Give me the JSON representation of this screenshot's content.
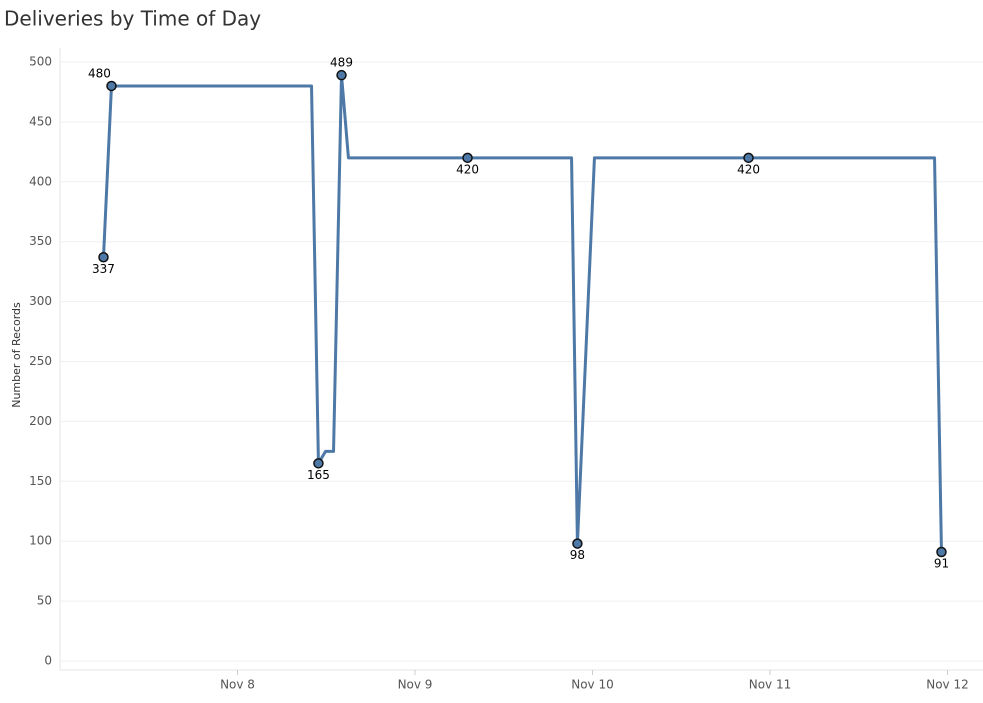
{
  "chart_data": {
    "type": "line",
    "title": "Deliveries by Time of Day",
    "y_label": "Number of Records",
    "x": [
      7.245,
      7.29,
      8.417,
      8.456,
      8.496,
      8.541,
      8.586,
      8.625,
      9.296,
      9.882,
      9.915,
      10.011,
      10.879,
      11.927,
      11.966
    ],
    "series": [
      {
        "color": "#4e79a7",
        "values": [
          337,
          480,
          480,
          165,
          175,
          175,
          489,
          420,
          420,
          420,
          98,
          420,
          420,
          420,
          91
        ],
        "value_labels": [
          "337",
          "480",
          null,
          "165",
          null,
          null,
          "489",
          null,
          "420",
          null,
          "98",
          null,
          "420",
          null,
          "91"
        ]
      }
    ],
    "xlim": [
      7.0,
      12.2
    ],
    "xticks": [
      {
        "value": 8,
        "label": "Nov 8"
      },
      {
        "value": 9,
        "label": "Nov 9"
      },
      {
        "value": 10,
        "label": "Nov 10"
      },
      {
        "value": 11,
        "label": "Nov 11"
      },
      {
        "value": 12,
        "label": "Nov 12"
      }
    ],
    "ylim": [
      0,
      500
    ],
    "yticks": [
      0,
      50,
      100,
      150,
      200,
      250,
      300,
      350,
      400,
      450,
      500
    ],
    "grid": true
  }
}
